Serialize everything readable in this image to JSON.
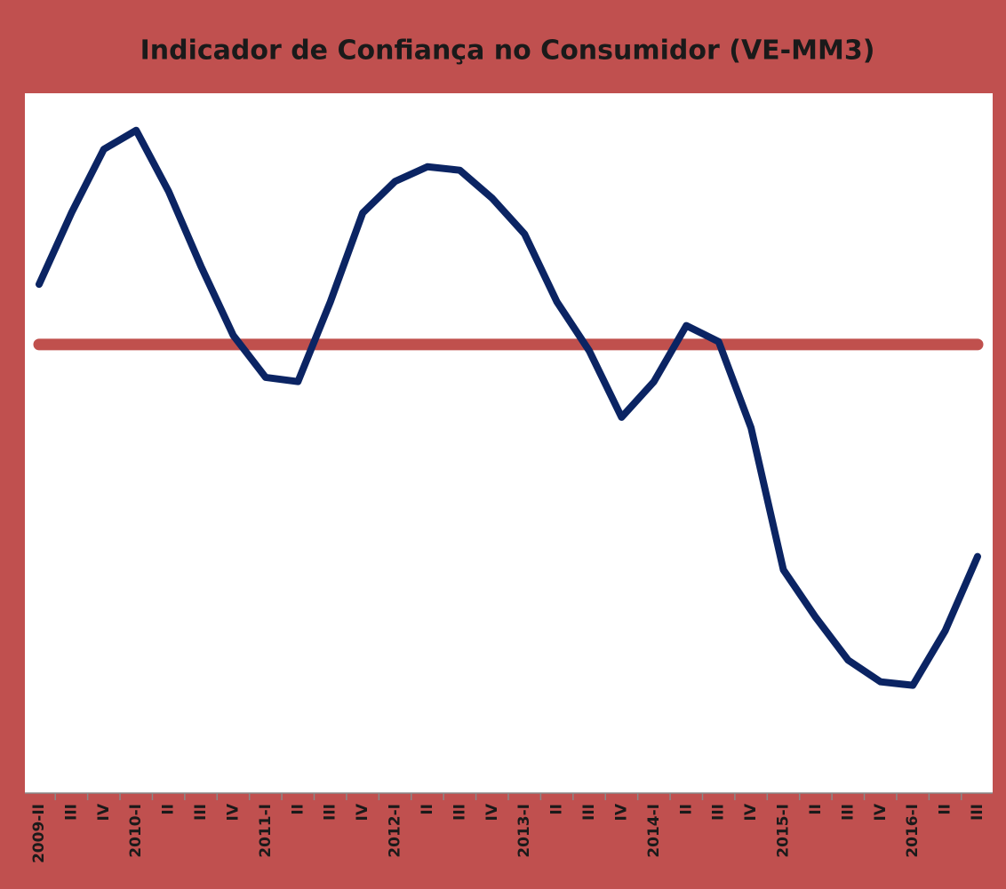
{
  "chart_data": {
    "type": "line",
    "title": "Indicador de Confiança no Consumidor (VE-MM3)",
    "categories": [
      "2009-II",
      "III",
      "IV",
      "2010-I",
      "II",
      "III",
      "IV",
      "2011-I",
      "II",
      "III",
      "IV",
      "2012-I",
      "II",
      "III",
      "IV",
      "2013-I",
      "II",
      "III",
      "IV",
      "2014-I",
      "II",
      "III",
      "IV",
      "2015-I",
      "II",
      "III",
      "IV",
      "2016-I",
      "II",
      "III"
    ],
    "series": [
      {
        "color": "#0b2463",
        "values": [
          72.7,
          82.9,
          92.0,
          94.7,
          86.0,
          75.3,
          65.4,
          59.4,
          58.8,
          70.2,
          82.9,
          87.4,
          89.5,
          89.0,
          85.0,
          79.9,
          70.2,
          63.2,
          53.7,
          58.8,
          66.8,
          64.5,
          52.2,
          31.9,
          25.1,
          19.0,
          15.9,
          15.4,
          23.2,
          33.8
        ]
      }
    ],
    "reference_line": {
      "value": 64.1,
      "color": "#c0504d"
    },
    "ylim": [
      0,
      100
    ],
    "grid": false
  }
}
